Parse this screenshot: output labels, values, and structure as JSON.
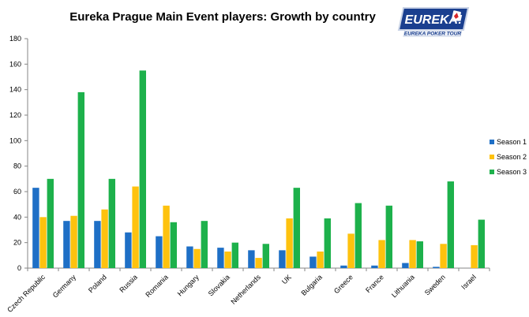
{
  "chart_data": {
    "type": "bar",
    "title": "Eureka Prague Main Event players: Growth by country",
    "xlabel": "",
    "ylabel": "",
    "ylim": [
      0,
      180
    ],
    "yticks": [
      0,
      20,
      40,
      60,
      80,
      100,
      120,
      140,
      160,
      180
    ],
    "grid": false,
    "legend_position": "right",
    "categories": [
      "Czech Republic",
      "Germany",
      "Poland",
      "Russia",
      "Romania",
      "Hungary",
      "Slovakia",
      "Netherlands",
      "UK",
      "Bulgaria",
      "Greece",
      "France",
      "Lithuania",
      "Sweden",
      "Israel"
    ],
    "series": [
      {
        "name": "Season 1",
        "color": "#1e6fc6",
        "values": [
          63,
          37,
          37,
          28,
          25,
          17,
          16,
          14,
          14,
          9,
          2,
          2,
          4,
          1,
          0
        ]
      },
      {
        "name": "Season 2",
        "color": "#fec20e",
        "values": [
          40,
          41,
          46,
          64,
          49,
          15,
          13,
          8,
          39,
          13,
          27,
          22,
          22,
          19,
          18
        ]
      },
      {
        "name": "Season 3",
        "color": "#1db14b",
        "values": [
          70,
          138,
          70,
          155,
          36,
          37,
          20,
          19,
          63,
          39,
          51,
          49,
          21,
          68,
          38
        ]
      }
    ]
  },
  "logo": {
    "name": "EUREKA!",
    "subtitle": "EUREKA POKER TOUR",
    "colors": {
      "primary": "#1a3f8f",
      "accent": "#d7262b",
      "frame": "#c9d3e6"
    }
  }
}
